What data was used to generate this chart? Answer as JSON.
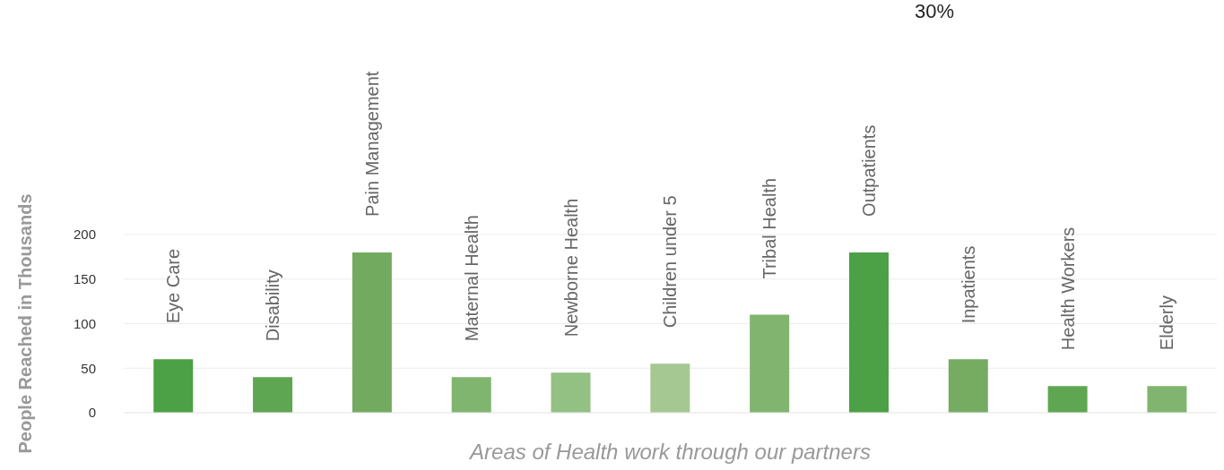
{
  "chart_data": {
    "type": "bar",
    "xlabel": "Areas of Health work through our partners",
    "ylabel": "People Reached in Thousands",
    "categories": [
      "Eye Care",
      "Disability",
      "Pain Management",
      "Maternal Health",
      "Newborne Health",
      "Children under 5",
      "Tribal Health",
      "Outpatients",
      "Inpatients",
      "Health Workers",
      "Elderly"
    ],
    "values": [
      60,
      40,
      180,
      40,
      45,
      55,
      110,
      180,
      60,
      30,
      30
    ],
    "colors": [
      "#4ca045",
      "#5fa652",
      "#72ab5f",
      "#7fb56e",
      "#93c083",
      "#a5c893",
      "#80b46f",
      "#4ca045",
      "#75ac62",
      "#5fa652",
      "#80b46f"
    ],
    "ylim": [
      0,
      200
    ],
    "yticks": [
      0,
      50,
      100,
      150,
      200
    ],
    "grid": "y",
    "annotations": [
      "30%"
    ]
  }
}
